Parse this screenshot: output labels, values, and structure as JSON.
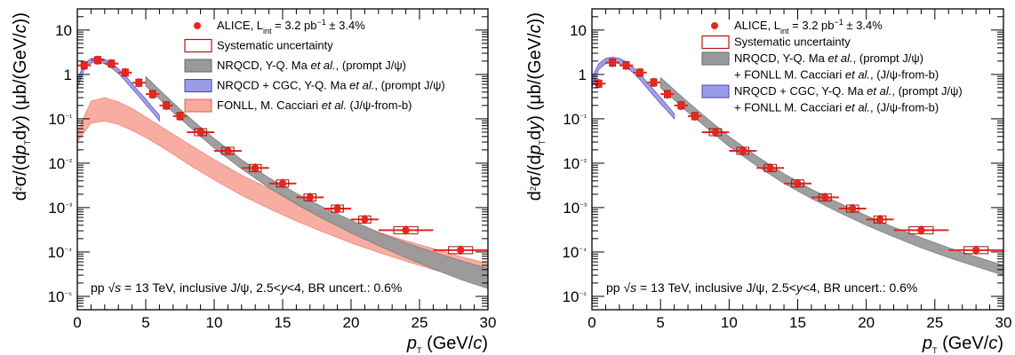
{
  "chart_data": [
    {
      "type": "scatter",
      "title": "",
      "xlabel": "p_T (GeV/c)",
      "ylabel": "d²σ/(dp_T dy) (μb/(GeV/c))",
      "xlim": [
        0,
        30
      ],
      "ylim": [
        5e-06,
        30
      ],
      "yscale": "log",
      "x_ticks": [
        "0",
        "5",
        "10",
        "15",
        "20",
        "25",
        "30"
      ],
      "y_ticks": [
        "10⁻⁵",
        "10⁻⁴",
        "10⁻³",
        "10⁻²",
        "10⁻¹",
        "1",
        "10"
      ],
      "grid": false,
      "legend_position": "top-right",
      "legend": [
        {
          "marker": "dot",
          "parts": [
            {
              "t": "ALICE, L"
            },
            {
              "t": "int",
              "sub": true
            },
            {
              "t": " = 3.2 pb"
            },
            {
              "t": "−1",
              "sup": true
            },
            {
              "t": " ± 3.4%"
            }
          ]
        },
        {
          "marker": "open-box",
          "parts": [
            {
              "t": "Systematic uncertainty"
            }
          ]
        },
        {
          "marker": "gray-box",
          "parts": [
            {
              "t": "NRQCD, Y-Q. Ma "
            },
            {
              "t": "et al.",
              "i": true
            },
            {
              "t": ", (prompt J/ψ)"
            }
          ]
        },
        {
          "marker": "blue-box",
          "parts": [
            {
              "t": "NRQCD + CGC, Y-Q. Ma "
            },
            {
              "t": "et al.",
              "i": true
            },
            {
              "t": ", (prompt J/ψ)"
            }
          ]
        },
        {
          "marker": "pink-box",
          "parts": [
            {
              "t": "FONLL, M. Cacciari "
            },
            {
              "t": "et al.",
              "i": true
            },
            {
              "t": " (J/ψ-from-b)"
            }
          ]
        }
      ],
      "annotation": "pp √s = 13 TeV, inclusive J/ψ, 2.5<y<4, BR uncert.: 0.6%",
      "series": [
        {
          "name": "ALICE, L_int = 3.2 pb⁻¹ ± 3.4%",
          "kind": "data",
          "color": "#e8261c",
          "points": [
            {
              "x": 0.5,
              "xlo": 0,
              "xhi": 1,
              "y": 1.6
            },
            {
              "x": 1.5,
              "xlo": 1,
              "xhi": 2,
              "y": 2.1
            },
            {
              "x": 2.5,
              "xlo": 2,
              "xhi": 3,
              "y": 1.75
            },
            {
              "x": 3.5,
              "xlo": 3,
              "xhi": 4,
              "y": 1.1
            },
            {
              "x": 4.5,
              "xlo": 4,
              "xhi": 5,
              "y": 0.65
            },
            {
              "x": 5.5,
              "xlo": 5,
              "xhi": 6,
              "y": 0.36
            },
            {
              "x": 6.5,
              "xlo": 6,
              "xhi": 7,
              "y": 0.2
            },
            {
              "x": 7.5,
              "xlo": 7,
              "xhi": 8,
              "y": 0.115
            },
            {
              "x": 9,
              "xlo": 8,
              "xhi": 10,
              "y": 0.05
            },
            {
              "x": 11,
              "xlo": 10,
              "xhi": 12,
              "y": 0.019
            },
            {
              "x": 13,
              "xlo": 12,
              "xhi": 14,
              "y": 0.0078
            },
            {
              "x": 15,
              "xlo": 14,
              "xhi": 16,
              "y": 0.0035
            },
            {
              "x": 17,
              "xlo": 16,
              "xhi": 18,
              "y": 0.0017
            },
            {
              "x": 19,
              "xlo": 18,
              "xhi": 20,
              "y": 0.00095
            },
            {
              "x": 21,
              "xlo": 20,
              "xhi": 22,
              "y": 0.00054
            },
            {
              "x": 24,
              "xlo": 22,
              "xhi": 26,
              "y": 0.00031
            },
            {
              "x": 28,
              "xlo": 26,
              "xhi": 30,
              "y": 0.00011
            }
          ]
        },
        {
          "name": "NRQCD + CGC, Y-Q. Ma et al., (prompt J/ψ)",
          "kind": "band",
          "color": "#9b9be8",
          "edge": "#5555c0",
          "x": [
            0,
            0.5,
            1,
            1.5,
            2,
            2.5,
            3,
            3.5,
            4,
            4.5,
            5,
            5.5,
            6
          ],
          "lo": [
            0.5,
            1.3,
            1.8,
            1.9,
            1.75,
            1.4,
            1.05,
            0.72,
            0.48,
            0.32,
            0.21,
            0.14,
            0.09
          ],
          "hi": [
            0.8,
            1.7,
            2.3,
            2.4,
            2.2,
            1.8,
            1.35,
            0.95,
            0.62,
            0.41,
            0.28,
            0.18,
            0.12
          ]
        },
        {
          "name": "NRQCD, Y-Q. Ma et al., (prompt J/ψ)",
          "kind": "band",
          "color": "#9a9a9a",
          "edge": "#777777",
          "x": [
            5,
            6,
            7,
            8,
            9,
            10,
            12,
            14,
            16,
            18,
            20,
            22,
            24,
            26,
            28,
            30
          ],
          "lo": [
            0.55,
            0.28,
            0.14,
            0.075,
            0.04,
            0.022,
            0.0075,
            0.0028,
            0.0012,
            0.00055,
            0.00027,
            0.00014,
            7.5e-05,
            4.2e-05,
            2.4e-05,
            1.5e-05
          ],
          "hi": [
            0.9,
            0.45,
            0.23,
            0.12,
            0.065,
            0.036,
            0.012,
            0.0047,
            0.0021,
            0.001,
            0.00052,
            0.00028,
            0.00016,
            0.0001,
            6.4e-05,
            4.2e-05
          ]
        },
        {
          "name": "FONLL, M. Cacciari et al. (J/ψ-from-b)",
          "kind": "band",
          "color": "#f7a99e",
          "edge": "#f08070",
          "x": [
            0,
            1,
            2,
            3,
            4,
            5,
            6,
            7,
            8,
            10,
            12,
            14,
            16,
            18,
            20,
            22,
            24,
            26,
            28,
            30
          ],
          "lo": [
            0.03,
            0.08,
            0.09,
            0.075,
            0.055,
            0.038,
            0.025,
            0.016,
            0.01,
            0.0042,
            0.0019,
            0.00095,
            0.0005,
            0.00028,
            0.00016,
            9.8e-05,
            6.2e-05,
            4e-05,
            2.7e-05,
            1.9e-05
          ],
          "hi": [
            0.05,
            0.25,
            0.3,
            0.24,
            0.17,
            0.11,
            0.07,
            0.045,
            0.029,
            0.012,
            0.0054,
            0.0027,
            0.0014,
            0.00079,
            0.00046,
            0.00028,
            0.00018,
            0.00012,
            7.9e-05,
            5.5e-05
          ]
        }
      ]
    },
    {
      "type": "scatter",
      "title": "",
      "xlabel": "p_T (GeV/c)",
      "ylabel": "d²σ/(dp_T dy) (μb/(GeV/c))",
      "xlim": [
        0,
        30
      ],
      "ylim": [
        5e-06,
        30
      ],
      "yscale": "log",
      "x_ticks": [
        "0",
        "5",
        "10",
        "15",
        "20",
        "25",
        "30"
      ],
      "y_ticks": [
        "10⁻⁵",
        "10⁻⁴",
        "10⁻³",
        "10⁻²",
        "10⁻¹",
        "1",
        "10"
      ],
      "grid": false,
      "legend_position": "top-right",
      "legend": [
        {
          "marker": "dot",
          "parts": [
            {
              "t": "ALICE, L"
            },
            {
              "t": "int",
              "sub": true
            },
            {
              "t": " = 3.2 pb"
            },
            {
              "t": "−1",
              "sup": true
            },
            {
              "t": " ± 3.4%"
            }
          ]
        },
        {
          "marker": "open-box",
          "parts": [
            {
              "t": "Systematic uncertainty"
            }
          ]
        },
        {
          "marker": "gray-box",
          "parts": [
            {
              "t": "NRQCD, Y-Q. Ma "
            },
            {
              "t": "et al.",
              "i": true
            },
            {
              "t": ", (prompt J/ψ)"
            }
          ]
        },
        {
          "marker": "none",
          "parts": [
            {
              "t": "+ FONLL M. Cacciari "
            },
            {
              "t": "et al.",
              "i": true
            },
            {
              "t": ", (J/ψ-from-b)"
            }
          ]
        },
        {
          "marker": "blue-box",
          "parts": [
            {
              "t": "NRQCD + CGC, Y-Q. Ma "
            },
            {
              "t": "et al.",
              "i": true
            },
            {
              "t": ", (prompt J/ψ)"
            }
          ]
        },
        {
          "marker": "none",
          "parts": [
            {
              "t": "+ FONLL M. Cacciari "
            },
            {
              "t": "et al.",
              "i": true
            },
            {
              "t": ", (J/ψ-from-b)"
            }
          ]
        }
      ],
      "annotation": "pp √s = 13 TeV, inclusive J/ψ, 2.5<y<4, BR uncert.: 0.6%",
      "series": [
        {
          "name": "ALICE, L_int = 3.2 pb⁻¹ ± 3.4%",
          "kind": "data",
          "color": "#e8261c",
          "points": [
            {
              "x": 0.5,
              "xlo": 0,
              "xhi": 1,
              "y": 0.62
            },
            {
              "x": 1.5,
              "xlo": 1,
              "xhi": 2,
              "y": 1.85
            },
            {
              "x": 2.5,
              "xlo": 2,
              "xhi": 3,
              "y": 1.6
            },
            {
              "x": 3.5,
              "xlo": 3,
              "xhi": 4,
              "y": 1.1
            },
            {
              "x": 4.5,
              "xlo": 4,
              "xhi": 5,
              "y": 0.66
            },
            {
              "x": 5.5,
              "xlo": 5,
              "xhi": 6,
              "y": 0.36
            },
            {
              "x": 6.5,
              "xlo": 6,
              "xhi": 7,
              "y": 0.2
            },
            {
              "x": 7.5,
              "xlo": 7,
              "xhi": 8,
              "y": 0.115
            },
            {
              "x": 9,
              "xlo": 8,
              "xhi": 10,
              "y": 0.05
            },
            {
              "x": 11,
              "xlo": 10,
              "xhi": 12,
              "y": 0.019
            },
            {
              "x": 13,
              "xlo": 12,
              "xhi": 14,
              "y": 0.0078
            },
            {
              "x": 15,
              "xlo": 14,
              "xhi": 16,
              "y": 0.0035
            },
            {
              "x": 17,
              "xlo": 16,
              "xhi": 18,
              "y": 0.0017
            },
            {
              "x": 19,
              "xlo": 18,
              "xhi": 20,
              "y": 0.00095
            },
            {
              "x": 21,
              "xlo": 20,
              "xhi": 22,
              "y": 0.00054
            },
            {
              "x": 24,
              "xlo": 22,
              "xhi": 26,
              "y": 0.00031
            },
            {
              "x": 28,
              "xlo": 26,
              "xhi": 30,
              "y": 0.00011
            }
          ]
        },
        {
          "name": "NRQCD + CGC, Y-Q. Ma et al., (prompt J/ψ) + FONLL M. Cacciari et al., (J/ψ-from-b)",
          "kind": "band",
          "color": "#9b9be8",
          "edge": "#5555c0",
          "x": [
            0,
            0.5,
            1,
            1.5,
            2,
            2.5,
            3,
            3.5,
            4,
            4.5,
            5,
            5.5,
            6
          ],
          "lo": [
            0.5,
            1.3,
            1.75,
            1.85,
            1.75,
            1.45,
            1.1,
            0.76,
            0.5,
            0.33,
            0.22,
            0.15,
            0.1
          ],
          "hi": [
            0.85,
            1.75,
            2.3,
            2.45,
            2.3,
            1.9,
            1.45,
            1.02,
            0.68,
            0.45,
            0.3,
            0.2,
            0.13
          ]
        },
        {
          "name": "NRQCD, Y-Q. Ma et al., (prompt J/ψ) + FONLL M. Cacciari et al., (J/ψ-from-b)",
          "kind": "band",
          "color": "#9a9a9a",
          "edge": "#777777",
          "x": [
            5,
            6,
            7,
            8,
            9,
            10,
            12,
            14,
            16,
            18,
            20,
            22,
            24,
            26,
            28,
            30
          ],
          "lo": [
            0.5,
            0.27,
            0.14,
            0.078,
            0.043,
            0.024,
            0.0088,
            0.0035,
            0.0016,
            0.00078,
            0.0004,
            0.00022,
            0.000125,
            7.5e-05,
            4.7e-05,
            3e-05
          ],
          "hi": [
            0.85,
            0.45,
            0.24,
            0.13,
            0.072,
            0.04,
            0.0145,
            0.0058,
            0.0026,
            0.00128,
            0.00066,
            0.00036,
            0.00021,
            0.000125,
            7.8e-05,
            5e-05
          ]
        }
      ]
    }
  ]
}
